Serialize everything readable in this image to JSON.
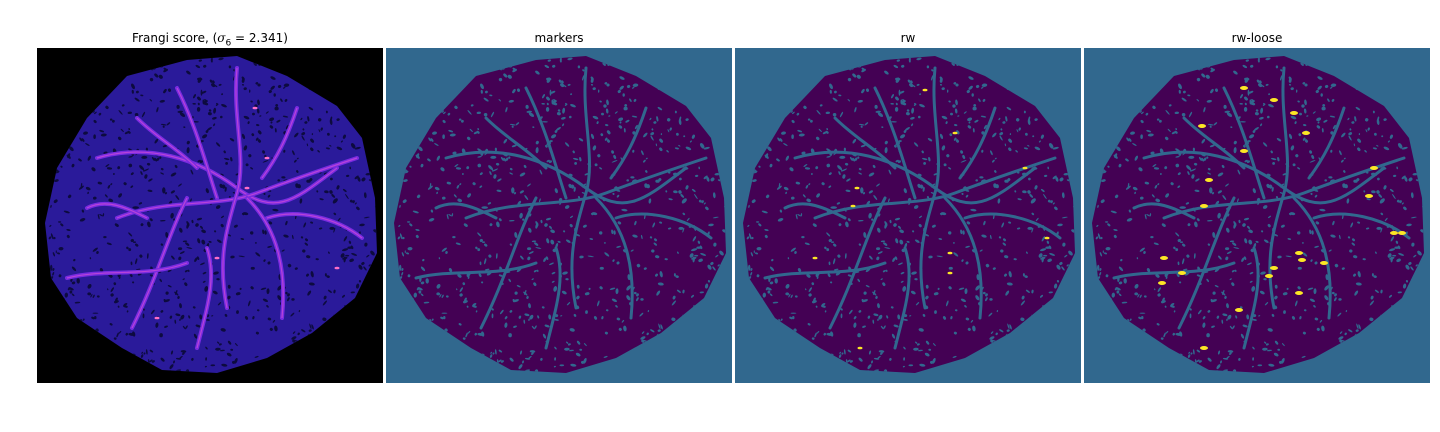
{
  "panels": [
    {
      "id": "frangi",
      "title_prefix": "Frangi score, (",
      "title_sigma": "σ",
      "title_sub": "6",
      "title_suffix": " = 2.341)",
      "background": "#000000",
      "tissue": "#2a1a9a",
      "pattern": "#0d0b3f",
      "vessel": "#7a2be0",
      "highlight": "#ff6ec7"
    },
    {
      "id": "markers",
      "title": "markers",
      "background": "#31688e",
      "tissue": "#440154",
      "pattern": "#31688e",
      "vessel": "#31688e"
    },
    {
      "id": "rw",
      "title": "rw",
      "background": "#31688e",
      "tissue": "#440154",
      "pattern": "#31688e",
      "vessel": "#31688e",
      "highlight": "#fde725"
    },
    {
      "id": "rw-loose",
      "title": "rw-loose",
      "background": "#31688e",
      "tissue": "#440154",
      "pattern": "#31688e",
      "vessel": "#31688e",
      "highlight": "#fde725"
    }
  ]
}
